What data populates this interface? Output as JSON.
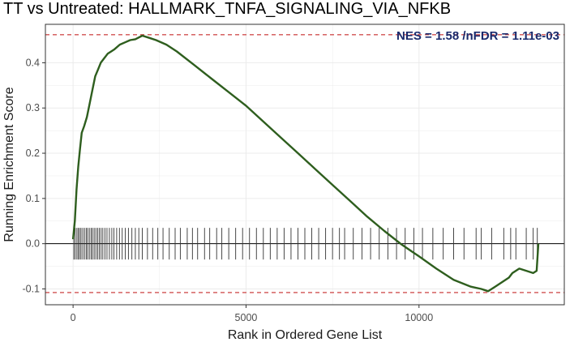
{
  "chart_data": {
    "type": "line",
    "title": "TT vs Untreated: HALLMARK_TNFA_SIGNALING_VIA_NFKB",
    "xlabel": "Rank in Ordered Gene List",
    "ylabel": "Running Enrichment Score",
    "xlim": [
      -800,
      14200
    ],
    "ylim": [
      -0.135,
      0.485
    ],
    "x_ticks": [
      0,
      5000,
      10000
    ],
    "x_tick_labels": [
      "0",
      "5000",
      "10000"
    ],
    "y_ticks": [
      -0.1,
      0.0,
      0.1,
      0.2,
      0.3,
      0.4
    ],
    "y_tick_labels": [
      "-0.1",
      "0.0",
      "0.1",
      "0.2",
      "0.3",
      "0.4"
    ],
    "annotation": "NES = 1.58 /nFDR = 1.11e-03",
    "grid": true,
    "colors": {
      "line": "#2e5e1e",
      "threshold": "#d05050",
      "zero": "#000000",
      "hits": "#333333",
      "grid": "#ebebeb",
      "annotation": "#1a2a6c"
    },
    "threshold_lines": [
      0.462,
      -0.108
    ],
    "series": [
      {
        "x": [
          0,
          50,
          100,
          150,
          200,
          250,
          320,
          400,
          480,
          560,
          640,
          720,
          800,
          900,
          1000,
          1100,
          1200,
          1350,
          1500,
          1650,
          1800,
          2000,
          2200,
          2400,
          2700,
          3000,
          3500,
          4000,
          4500,
          5000,
          5500,
          6000,
          6500,
          7000,
          7500,
          8000,
          8500,
          9000,
          9500,
          10000,
          10500,
          11000,
          11500,
          11800,
          12000,
          12200,
          12400,
          12600,
          12700,
          12900,
          13100,
          13300,
          13400,
          13450
        ],
        "y": [
          0.01,
          0.05,
          0.12,
          0.17,
          0.21,
          0.245,
          0.26,
          0.28,
          0.31,
          0.34,
          0.37,
          0.385,
          0.4,
          0.41,
          0.42,
          0.425,
          0.43,
          0.44,
          0.445,
          0.45,
          0.452,
          0.46,
          0.455,
          0.45,
          0.44,
          0.425,
          0.395,
          0.365,
          0.335,
          0.305,
          0.27,
          0.235,
          0.2,
          0.165,
          0.13,
          0.095,
          0.06,
          0.028,
          -0.002,
          -0.028,
          -0.055,
          -0.08,
          -0.095,
          -0.1,
          -0.105,
          -0.095,
          -0.085,
          -0.075,
          -0.065,
          -0.055,
          -0.06,
          -0.065,
          -0.06,
          0.0
        ]
      }
    ],
    "hit_positions": [
      20,
      60,
      110,
      150,
      190,
      230,
      280,
      330,
      380,
      420,
      470,
      520,
      560,
      610,
      660,
      710,
      760,
      810,
      860,
      920,
      980,
      1050,
      1120,
      1180,
      1260,
      1340,
      1420,
      1510,
      1600,
      1700,
      1800,
      1900,
      2000,
      2150,
      2300,
      2450,
      2600,
      2780,
      2950,
      3100,
      3300,
      3450,
      3600,
      3800,
      3950,
      4150,
      4300,
      4500,
      4700,
      4900,
      5100,
      5300,
      5500,
      5700,
      5900,
      6100,
      6300,
      6500,
      6700,
      6900,
      7100,
      7300,
      7500,
      7700,
      7850,
      8100,
      8350,
      8600,
      8850,
      9100,
      9350,
      9600,
      9850,
      10100,
      10400,
      10700,
      11000,
      11300,
      11650,
      11800,
      12100,
      12450,
      12650,
      12800,
      13100,
      13300,
      13420
    ]
  }
}
